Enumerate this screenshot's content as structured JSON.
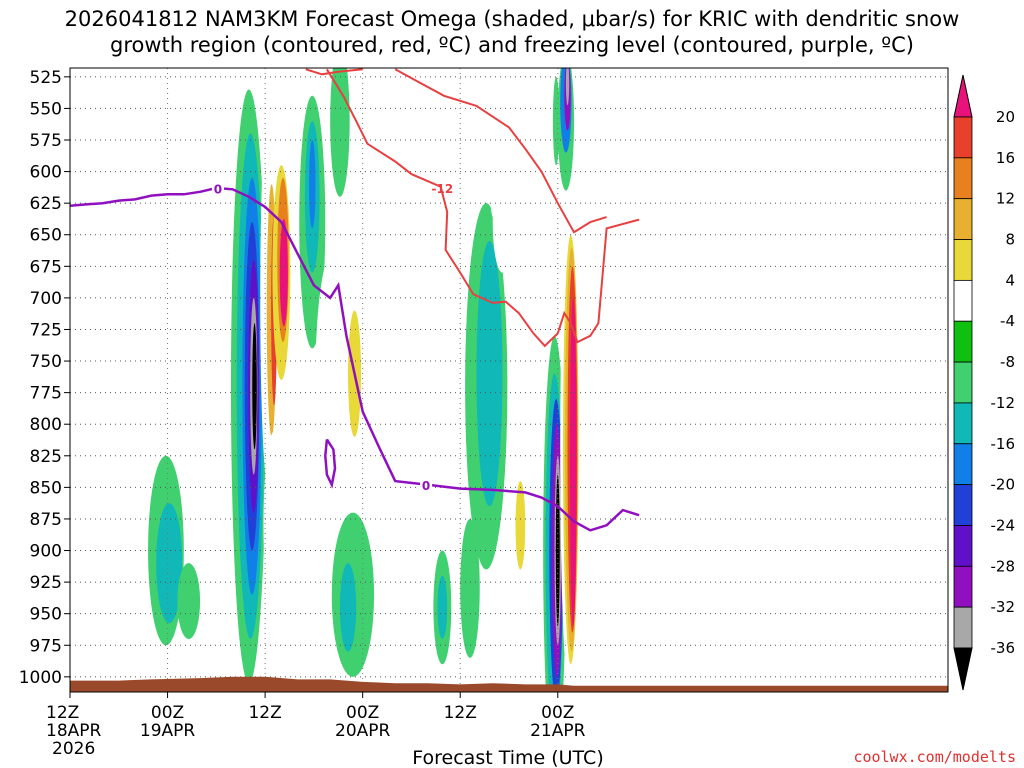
{
  "chart_data": {
    "type": "heatmap",
    "title_line1": "2026041812 NAM3KM Forecast Omega (shaded, μbar/s) for KRIC with dendritic snow",
    "title_line2": "growth region (contoured, red, ºC) and freezing level (contoured, purple, ºC)",
    "xlabel": "Forecast Time (UTC)",
    "credit": "coolwx.com/modelts",
    "y_ticks": [
      525,
      550,
      575,
      600,
      625,
      650,
      675,
      700,
      725,
      750,
      775,
      800,
      825,
      850,
      875,
      900,
      925,
      950,
      975,
      1000
    ],
    "y_range_hpa": [
      518,
      1012
    ],
    "x_range_hours": [
      0,
      54
    ],
    "x_ticks": [
      {
        "hour": 0,
        "label": "12Z",
        "sub1": "18APR",
        "sub2": "2026"
      },
      {
        "hour": 6,
        "label": "00Z",
        "sub1": "19APR",
        "sub2": ""
      },
      {
        "hour": 12,
        "label": "12Z",
        "sub1": "",
        "sub2": ""
      },
      {
        "hour": 18,
        "label": "00Z",
        "sub1": "20APR",
        "sub2": ""
      },
      {
        "hour": 24,
        "label": "12Z",
        "sub1": "",
        "sub2": ""
      },
      {
        "hour": 30,
        "label": "00Z",
        "sub1": "21APR",
        "sub2": ""
      }
    ],
    "colorbar": {
      "levels": [
        "20",
        "16",
        "12",
        "8",
        "4",
        "-4",
        "-8",
        "-12",
        "-16",
        "-20",
        "-24",
        "-28",
        "-32",
        "-36"
      ],
      "colors": [
        "#e8127a",
        "#e8402c",
        "#e88020",
        "#e8b030",
        "#e8d838",
        "#ffffff",
        "#10c010",
        "#40d070",
        "#10b8b8",
        "#1080e8",
        "#2040d8",
        "#6010c8",
        "#9010c0",
        "#a8a8a8",
        "#000000"
      ]
    },
    "surface_color": "#9a4a2a",
    "freezing_level": {
      "label": "0",
      "color": "#9010c0",
      "points": [
        [
          0,
          627
        ],
        [
          1,
          626
        ],
        [
          2,
          625
        ],
        [
          3,
          623
        ],
        [
          4,
          622
        ],
        [
          5,
          619
        ],
        [
          6,
          618
        ],
        [
          7,
          618
        ],
        [
          8,
          616
        ],
        [
          9,
          613
        ],
        [
          10,
          614
        ],
        [
          11,
          620
        ],
        [
          12,
          628
        ],
        [
          13,
          640
        ],
        [
          14,
          665
        ],
        [
          15,
          690
        ],
        [
          16,
          700
        ],
        [
          16.5,
          690
        ],
        [
          17,
          730
        ],
        [
          18,
          790
        ],
        [
          19,
          818
        ],
        [
          20,
          845
        ],
        [
          22,
          848
        ],
        [
          24,
          851
        ],
        [
          26,
          852
        ],
        [
          28,
          854
        ],
        [
          29,
          858
        ],
        [
          30,
          865
        ],
        [
          31,
          877
        ],
        [
          32,
          884
        ],
        [
          33,
          880
        ],
        [
          34,
          868
        ],
        [
          35,
          872
        ]
      ],
      "loop": [
        [
          15.8,
          812
        ],
        [
          16.2,
          820
        ],
        [
          16.3,
          835
        ],
        [
          16.1,
          848
        ],
        [
          15.8,
          840
        ],
        [
          15.7,
          825
        ],
        [
          15.8,
          812
        ]
      ]
    },
    "dgz_contours": {
      "label": "-12",
      "color": "#e84040",
      "upper_left": [
        [
          14.5,
          519
        ],
        [
          15.5,
          523
        ],
        [
          16.5,
          521
        ],
        [
          18,
          519
        ]
      ],
      "upper_right": [
        [
          20,
          519
        ],
        [
          21,
          526
        ],
        [
          23,
          540
        ],
        [
          25,
          548
        ],
        [
          27,
          565
        ],
        [
          28,
          582
        ],
        [
          29,
          600
        ],
        [
          30,
          625
        ],
        [
          31,
          648
        ],
        [
          32,
          640
        ],
        [
          33,
          636
        ]
      ],
      "lower": [
        [
          15.8,
          519
        ],
        [
          16.8,
          540
        ],
        [
          17.6,
          560
        ],
        [
          18.3,
          578
        ],
        [
          20,
          592
        ],
        [
          21,
          602
        ],
        [
          22.8,
          612
        ],
        [
          23.2,
          632
        ],
        [
          23.1,
          662
        ],
        [
          24,
          680
        ],
        [
          24.8,
          697
        ],
        [
          26,
          704
        ],
        [
          26.8,
          703
        ],
        [
          27.6,
          712
        ],
        [
          28.5,
          728
        ],
        [
          29.2,
          738
        ],
        [
          30,
          728
        ],
        [
          30.4,
          712
        ],
        [
          30.8,
          720
        ],
        [
          31.2,
          735
        ],
        [
          32,
          730
        ],
        [
          32.5,
          720
        ],
        [
          33,
          645
        ],
        [
          35,
          638
        ]
      ]
    },
    "omega_patches": [
      {
        "h": 5.4,
        "p": 610,
        "w": 0.9,
        "d": 130,
        "level": 5
      },
      {
        "h": 6.7,
        "p": 590,
        "w": 1.0,
        "d": 150,
        "level": 5
      },
      {
        "h": 9.0,
        "p": 560,
        "w": 0.7,
        "d": 70,
        "level": 5
      },
      {
        "h": 5.9,
        "p": 900,
        "w": 1.1,
        "d": 150,
        "level": 7
      },
      {
        "h": 6.1,
        "p": 910,
        "w": 0.8,
        "d": 95,
        "level": 8
      },
      {
        "h": 7.3,
        "p": 940,
        "w": 0.7,
        "d": 60,
        "level": 7
      },
      {
        "h": 11.0,
        "p": 770,
        "w": 1.1,
        "d": 470,
        "level": 7
      },
      {
        "h": 11.1,
        "p": 770,
        "w": 0.85,
        "d": 400,
        "level": 8
      },
      {
        "h": 11.2,
        "p": 770,
        "w": 0.6,
        "d": 330,
        "level": 9
      },
      {
        "h": 11.2,
        "p": 770,
        "w": 0.45,
        "d": 260,
        "level": 10
      },
      {
        "h": 11.3,
        "p": 770,
        "w": 0.33,
        "d": 200,
        "level": 11
      },
      {
        "h": 11.3,
        "p": 770,
        "w": 0.22,
        "d": 140,
        "level": 13
      },
      {
        "h": 11.35,
        "p": 770,
        "w": 0.14,
        "d": 100,
        "level": 14
      },
      {
        "h": 12.2,
        "p": 700,
        "w": 0.5,
        "d": 300,
        "level": 5
      },
      {
        "h": 12.4,
        "p": 710,
        "w": 0.3,
        "d": 200,
        "level": 3
      },
      {
        "h": 12.55,
        "p": 710,
        "w": 0.18,
        "d": 150,
        "level": 1
      },
      {
        "h": 13.0,
        "p": 680,
        "w": 0.55,
        "d": 170,
        "level": 4
      },
      {
        "h": 13.1,
        "p": 670,
        "w": 0.35,
        "d": 130,
        "level": 2
      },
      {
        "h": 13.15,
        "p": 680,
        "w": 0.25,
        "d": 85,
        "level": 0
      },
      {
        "h": 14.9,
        "p": 640,
        "w": 0.8,
        "d": 200,
        "level": 7
      },
      {
        "h": 14.9,
        "p": 620,
        "w": 0.45,
        "d": 120,
        "level": 8
      },
      {
        "h": 14.9,
        "p": 610,
        "w": 0.2,
        "d": 70,
        "level": 9
      },
      {
        "h": 15.2,
        "p": 860,
        "w": 1.2,
        "d": 180,
        "level": 5
      },
      {
        "h": 16.3,
        "p": 760,
        "w": 1.2,
        "d": 200,
        "level": 5
      },
      {
        "h": 17.7,
        "p": 700,
        "w": 1.0,
        "d": 220,
        "level": 5
      },
      {
        "h": 17.5,
        "p": 760,
        "w": 0.4,
        "d": 100,
        "level": 4
      },
      {
        "h": 18.0,
        "p": 570,
        "w": 1.0,
        "d": 150,
        "level": 5
      },
      {
        "h": 16.6,
        "p": 560,
        "w": 0.6,
        "d": 120,
        "level": 7
      },
      {
        "h": 17.4,
        "p": 935,
        "w": 1.3,
        "d": 130,
        "level": 7
      },
      {
        "h": 17.1,
        "p": 945,
        "w": 0.5,
        "d": 70,
        "level": 8
      },
      {
        "h": 12.6,
        "p": 880,
        "w": 0.7,
        "d": 150,
        "level": 5
      },
      {
        "h": 13.7,
        "p": 905,
        "w": 0.6,
        "d": 100,
        "level": 5
      },
      {
        "h": 16.5,
        "p": 550,
        "w": 0.4,
        "d": 60,
        "level": 7
      },
      {
        "h": 20.1,
        "p": 555,
        "w": 0.8,
        "d": 140,
        "level": 5
      },
      {
        "h": 22.0,
        "p": 575,
        "w": 0.6,
        "d": 90,
        "level": 5
      },
      {
        "h": 23.4,
        "p": 650,
        "w": 0.5,
        "d": 160,
        "level": 5
      },
      {
        "h": 21.3,
        "p": 720,
        "w": 1.1,
        "d": 160,
        "level": 5
      },
      {
        "h": 22.0,
        "p": 780,
        "w": 0.6,
        "d": 90,
        "level": 5
      },
      {
        "h": 25.6,
        "p": 770,
        "w": 1.3,
        "d": 290,
        "level": 7
      },
      {
        "h": 25.8,
        "p": 760,
        "w": 0.8,
        "d": 210,
        "level": 8
      },
      {
        "h": 24.6,
        "p": 930,
        "w": 0.6,
        "d": 110,
        "level": 7
      },
      {
        "h": 22.9,
        "p": 945,
        "w": 0.55,
        "d": 90,
        "level": 7
      },
      {
        "h": 22.9,
        "p": 945,
        "w": 0.3,
        "d": 50,
        "level": 8
      },
      {
        "h": 26.6,
        "p": 640,
        "w": 0.6,
        "d": 80,
        "level": 5
      },
      {
        "h": 26.2,
        "p": 620,
        "w": 0.35,
        "d": 40,
        "level": 5
      },
      {
        "h": 28.0,
        "p": 860,
        "w": 0.8,
        "d": 80,
        "level": 5
      },
      {
        "h": 27.7,
        "p": 880,
        "w": 0.3,
        "d": 70,
        "level": 4
      },
      {
        "h": 29.8,
        "p": 900,
        "w": 0.7,
        "d": 340,
        "level": 7
      },
      {
        "h": 29.8,
        "p": 900,
        "w": 0.55,
        "d": 280,
        "level": 8
      },
      {
        "h": 29.9,
        "p": 900,
        "w": 0.42,
        "d": 240,
        "level": 10
      },
      {
        "h": 29.95,
        "p": 900,
        "w": 0.3,
        "d": 200,
        "level": 12
      },
      {
        "h": 30.0,
        "p": 900,
        "w": 0.2,
        "d": 150,
        "level": 13
      },
      {
        "h": 30.0,
        "p": 900,
        "w": 0.12,
        "d": 120,
        "level": 14
      },
      {
        "h": 30.5,
        "p": 560,
        "w": 0.5,
        "d": 110,
        "level": 7
      },
      {
        "h": 30.5,
        "p": 545,
        "w": 0.35,
        "d": 80,
        "level": 9
      },
      {
        "h": 30.6,
        "p": 540,
        "w": 0.2,
        "d": 55,
        "level": 12
      },
      {
        "h": 30.6,
        "p": 530,
        "w": 0.1,
        "d": 35,
        "level": 13
      },
      {
        "h": 29.9,
        "p": 560,
        "w": 0.2,
        "d": 70,
        "level": 7
      },
      {
        "h": 30.7,
        "p": 820,
        "w": 0.55,
        "d": 380,
        "level": 5
      },
      {
        "h": 30.8,
        "p": 820,
        "w": 0.48,
        "d": 340,
        "level": 4
      },
      {
        "h": 30.85,
        "p": 820,
        "w": 0.4,
        "d": 320,
        "level": 3
      },
      {
        "h": 30.9,
        "p": 820,
        "w": 0.3,
        "d": 290,
        "level": 1
      },
      {
        "h": 30.95,
        "p": 830,
        "w": 0.2,
        "d": 260,
        "level": 0
      }
    ]
  }
}
